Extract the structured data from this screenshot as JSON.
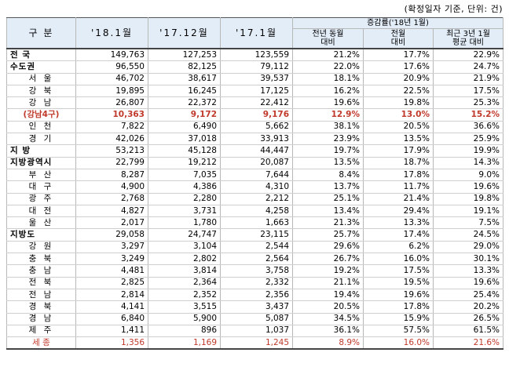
{
  "note": "(확정일자 기준, 단위: 건)",
  "header": {
    "region": "구 분",
    "col1": "'18.1월",
    "col2": "'17.12월",
    "col3": "'17.1월",
    "group": "증감률('18년 1월)",
    "sub1_a": "전년 동월",
    "sub1_b": "대비",
    "sub2_a": "전월",
    "sub2_b": "대비",
    "sub3_a": "최근 3년 1월",
    "sub3_b": "평균 대비"
  },
  "rows": [
    {
      "region": "전 국",
      "v1": "149,763",
      "v2": "127,253",
      "v3": "123,559",
      "p1": "21.2%",
      "p2": "17.7%",
      "p3": "22.9%",
      "style": "bold"
    },
    {
      "region": "수도권",
      "v1": "96,550",
      "v2": "82,125",
      "v3": "79,112",
      "p1": "22.0%",
      "p2": "17.6%",
      "p3": "24.7%",
      "style": "bold"
    },
    {
      "region": "서 울",
      "v1": "46,702",
      "v2": "38,617",
      "v3": "39,537",
      "p1": "18.1%",
      "p2": "20.9%",
      "p3": "21.9%",
      "style": ""
    },
    {
      "region": "강 북",
      "v1": "19,895",
      "v2": "16,245",
      "v3": "17,125",
      "p1": "16.2%",
      "p2": "22.5%",
      "p3": "17.5%",
      "style": ""
    },
    {
      "region": "강 남",
      "v1": "26,807",
      "v2": "22,372",
      "v3": "22,412",
      "p1": "19.6%",
      "p2": "19.8%",
      "p3": "25.3%",
      "style": ""
    },
    {
      "region": "(강남4구)",
      "v1": "10,363",
      "v2": "9,172",
      "v3": "9,176",
      "p1": "12.9%",
      "p2": "13.0%",
      "p3": "15.2%",
      "style": "red red-bold"
    },
    {
      "region": "인 천",
      "v1": "7,822",
      "v2": "6,490",
      "v3": "5,662",
      "p1": "38.1%",
      "p2": "20.5%",
      "p3": "36.6%",
      "style": ""
    },
    {
      "region": "경 기",
      "v1": "42,026",
      "v2": "37,018",
      "v3": "33,913",
      "p1": "23.9%",
      "p2": "13.5%",
      "p3": "25.9%",
      "style": ""
    },
    {
      "region": "지 방",
      "v1": "53,213",
      "v2": "45,128",
      "v3": "44,447",
      "p1": "19.7%",
      "p2": "17.9%",
      "p3": "19.9%",
      "style": "bold"
    },
    {
      "region": "지방광역시",
      "v1": "22,799",
      "v2": "19,212",
      "v3": "20,087",
      "p1": "13.5%",
      "p2": "18.7%",
      "p3": "14.3%",
      "style": "bold"
    },
    {
      "region": "부 산",
      "v1": "8,287",
      "v2": "7,035",
      "v3": "7,644",
      "p1": "8.4%",
      "p2": "17.8%",
      "p3": "9.0%",
      "style": ""
    },
    {
      "region": "대 구",
      "v1": "4,900",
      "v2": "4,386",
      "v3": "4,310",
      "p1": "13.7%",
      "p2": "11.7%",
      "p3": "19.6%",
      "style": ""
    },
    {
      "region": "광 주",
      "v1": "2,768",
      "v2": "2,280",
      "v3": "2,212",
      "p1": "25.1%",
      "p2": "21.4%",
      "p3": "19.8%",
      "style": ""
    },
    {
      "region": "대 전",
      "v1": "4,827",
      "v2": "3,731",
      "v3": "4,258",
      "p1": "13.4%",
      "p2": "29.4%",
      "p3": "19.1%",
      "style": ""
    },
    {
      "region": "울 산",
      "v1": "2,017",
      "v2": "1,780",
      "v3": "1,663",
      "p1": "21.3%",
      "p2": "13.3%",
      "p3": "7.5%",
      "style": ""
    },
    {
      "region": "지방도",
      "v1": "29,058",
      "v2": "24,747",
      "v3": "23,115",
      "p1": "25.7%",
      "p2": "17.4%",
      "p3": "24.5%",
      "style": "bold"
    },
    {
      "region": "강 원",
      "v1": "3,297",
      "v2": "3,104",
      "v3": "2,544",
      "p1": "29.6%",
      "p2": "6.2%",
      "p3": "29.0%",
      "style": ""
    },
    {
      "region": "충 북",
      "v1": "3,249",
      "v2": "2,802",
      "v3": "2,564",
      "p1": "26.7%",
      "p2": "16.0%",
      "p3": "30.1%",
      "style": ""
    },
    {
      "region": "충 남",
      "v1": "4,481",
      "v2": "3,814",
      "v3": "3,758",
      "p1": "19.2%",
      "p2": "17.5%",
      "p3": "13.3%",
      "style": ""
    },
    {
      "region": "전 북",
      "v1": "2,825",
      "v2": "2,364",
      "v3": "2,332",
      "p1": "21.1%",
      "p2": "19.5%",
      "p3": "19.6%",
      "style": ""
    },
    {
      "region": "전 남",
      "v1": "2,814",
      "v2": "2,352",
      "v3": "2,356",
      "p1": "19.4%",
      "p2": "19.6%",
      "p3": "25.4%",
      "style": ""
    },
    {
      "region": "경 북",
      "v1": "4,141",
      "v2": "3,515",
      "v3": "3,437",
      "p1": "20.5%",
      "p2": "17.8%",
      "p3": "20.2%",
      "style": ""
    },
    {
      "region": "경 남",
      "v1": "6,840",
      "v2": "5,900",
      "v3": "5,087",
      "p1": "34.5%",
      "p2": "15.9%",
      "p3": "26.5%",
      "style": ""
    },
    {
      "region": "제 주",
      "v1": "1,411",
      "v2": "896",
      "v3": "1,037",
      "p1": "36.1%",
      "p2": "57.5%",
      "p3": "61.5%",
      "style": ""
    },
    {
      "region": "세 종",
      "v1": "1,356",
      "v2": "1,169",
      "v3": "1,245",
      "p1": "8.9%",
      "p2": "16.0%",
      "p3": "21.6%",
      "style": "red"
    }
  ]
}
